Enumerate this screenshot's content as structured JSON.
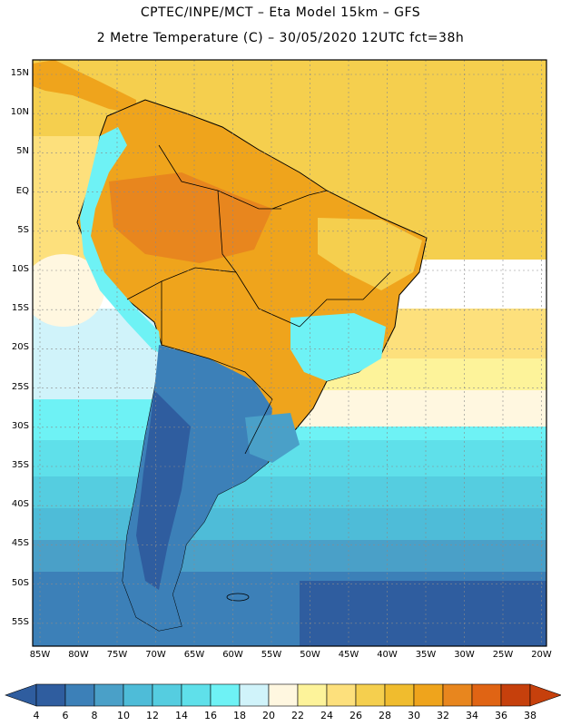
{
  "header": {
    "title_line1": "CPTEC/INPE/MCT –  Eta Model 15km – GFS",
    "title_line2": "2 Metre Temperature (C) – 30/05/2020 12UTC fct=38h"
  },
  "map": {
    "lat_labels": [
      "15N",
      "10N",
      "5N",
      "EQ",
      "5S",
      "10S",
      "15S",
      "20S",
      "25S",
      "30S",
      "35S",
      "40S",
      "45S",
      "50S",
      "55S"
    ],
    "lon_labels": [
      "85W",
      "80W",
      "75W",
      "70W",
      "65W",
      "60W",
      "55W",
      "50W",
      "45W",
      "40W",
      "35W",
      "30W",
      "25W",
      "20W"
    ],
    "colors": {
      "t4_6": "#2f5d9f",
      "t6_8": "#3c80b8",
      "t8_10": "#4aa0c8",
      "t10_12": "#4ebcd8",
      "t12_14": "#55cde0",
      "t14_16": "#5fe0ea",
      "t16_18": "#6ef2f5",
      "t18_20": "#d0f3fa",
      "t20_22": "#fff7e0",
      "t22_24": "#fdf39a",
      "t24_26": "#fde07c",
      "t26_28": "#f5cf4e",
      "t28_30": "#f0bc2e",
      "t30_32": "#efa41c",
      "t32_34": "#e8861e",
      "t34_36": "#e06414",
      "t36_38": "#c6400c"
    }
  },
  "colorbar": {
    "labels": [
      "4",
      "6",
      "8",
      "10",
      "12",
      "14",
      "16",
      "18",
      "20",
      "22",
      "24",
      "26",
      "28",
      "30",
      "32",
      "34",
      "36",
      "38"
    ],
    "colors": [
      "#2f5d9f",
      "#3c80b8",
      "#4aa0c8",
      "#4ebcd8",
      "#55cde0",
      "#5fe0ea",
      "#6ef2f5",
      "#d0f3fa",
      "#fff7e0",
      "#fdf39a",
      "#fde07c",
      "#f5cf4e",
      "#f0bc2e",
      "#efa41c",
      "#e8861e",
      "#e06414",
      "#c6400c"
    ]
  }
}
